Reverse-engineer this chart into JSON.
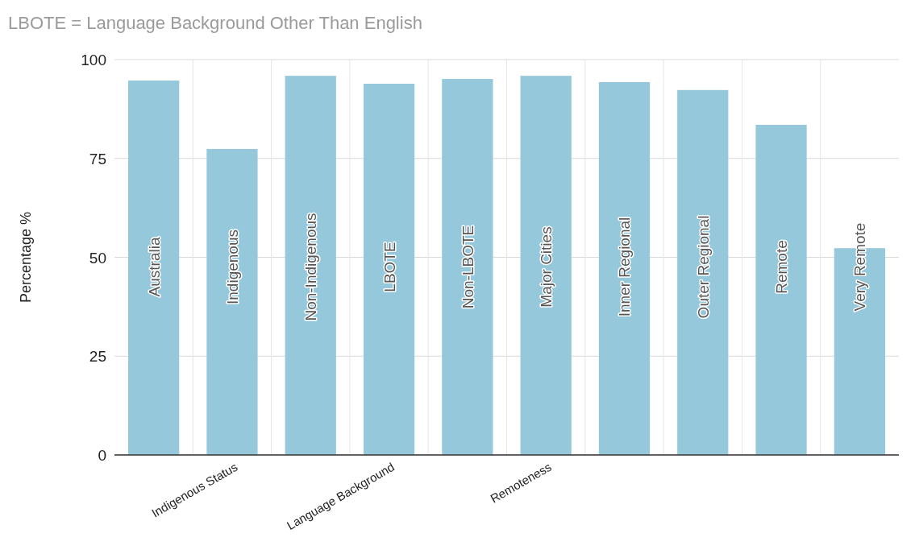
{
  "chart_data": {
    "type": "bar",
    "title": "LBOTE = Language Background Other Than English",
    "ylabel": "Percentage %",
    "categories": [
      null,
      "Indigenous Status",
      null,
      "Language Background",
      null,
      "Remoteness",
      null,
      null,
      null,
      null
    ],
    "values": [
      94.7,
      77.4,
      95.9,
      93.9,
      95.1,
      95.9,
      94.3,
      92.3,
      83.5,
      52.3
    ],
    "value_labels": [
      "Australia",
      "Indigenous",
      "Non-Indigenous",
      "LBOTE",
      "Non-LBOTE",
      "Major Cities",
      "Inner Regional",
      "Outer Regional",
      "Remote",
      "Very Remote"
    ],
    "color": "#96c8db",
    "ylim": [
      0,
      100
    ],
    "yticks": [
      0,
      25,
      50,
      75,
      100
    ],
    "grid": true
  }
}
